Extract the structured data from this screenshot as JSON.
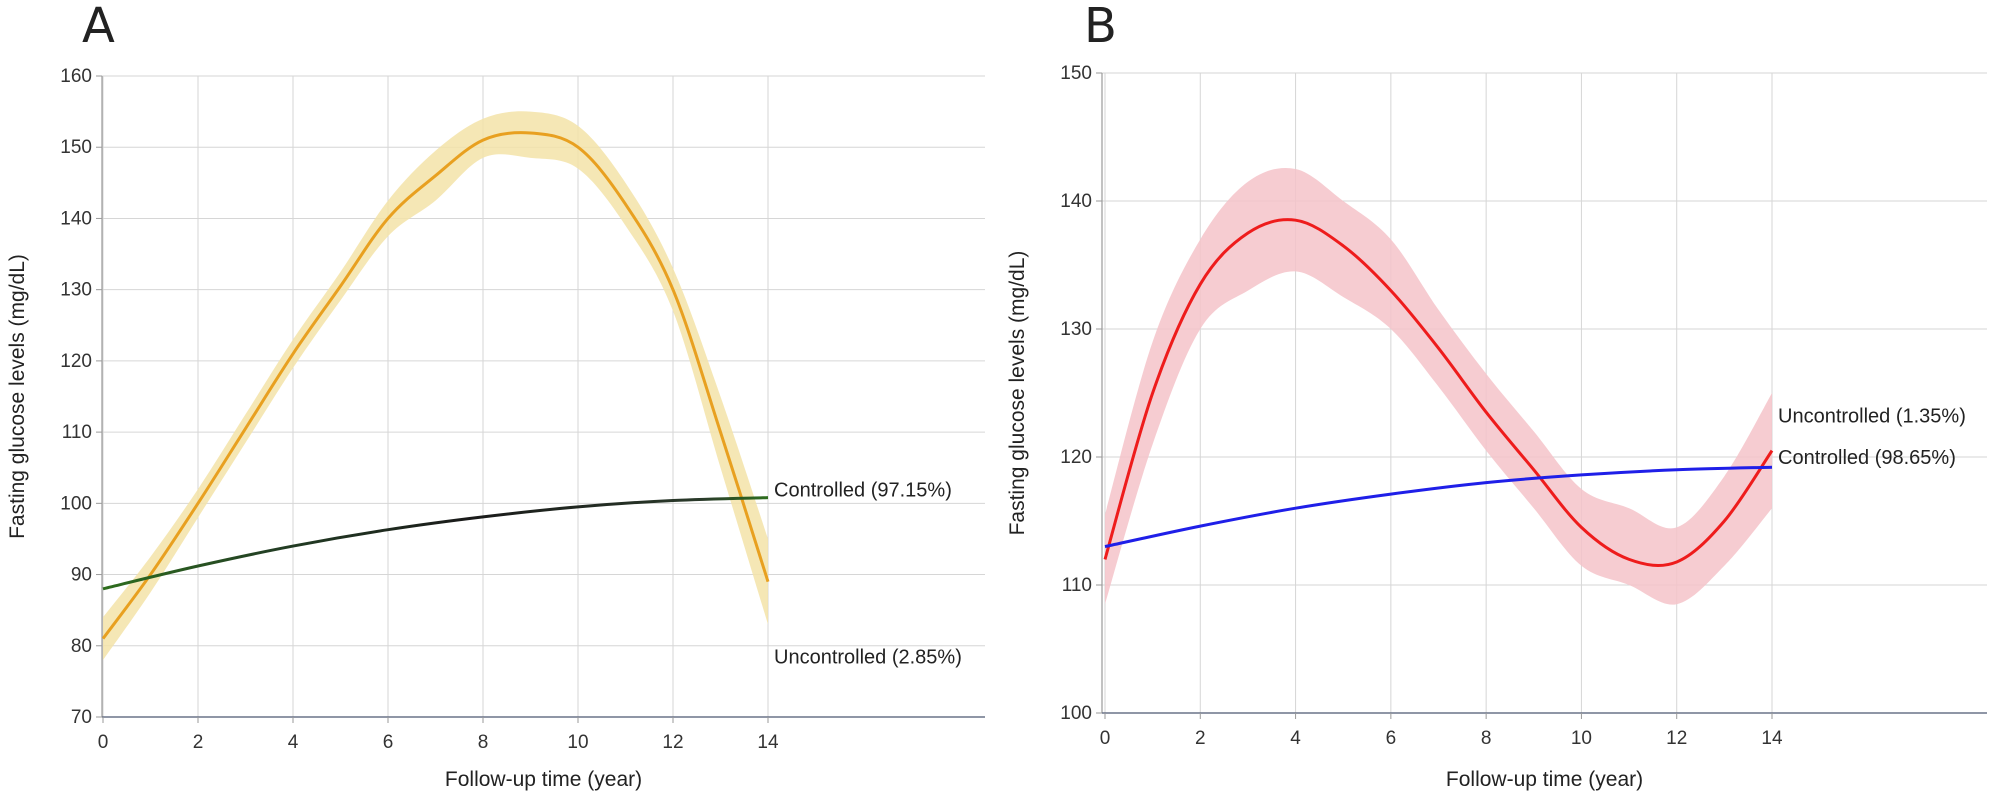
{
  "chart_data": [
    {
      "type": "line",
      "panel": "A",
      "title": "",
      "xlabel": "Follow-up time (year)",
      "ylabel": "Fasting glucose levels (mg/dL)",
      "xlim": [
        0,
        18.7
      ],
      "ylim": [
        70,
        160
      ],
      "xticks": [
        0,
        2,
        4,
        6,
        8,
        10,
        12,
        14
      ],
      "yticks": [
        70,
        80,
        90,
        100,
        110,
        120,
        130,
        140,
        150,
        160
      ],
      "grid": true,
      "series": [
        {
          "name": "Uncontrolled (2.85%)",
          "color": "#e8a020",
          "band_color": "#f3e3a8",
          "x": [
            0,
            1,
            2,
            3,
            4,
            5,
            6,
            7,
            8,
            9,
            10,
            11,
            12,
            13,
            14
          ],
          "values": [
            81,
            90,
            100,
            110.5,
            121,
            130.5,
            140,
            146,
            151,
            152,
            150,
            142,
            130,
            110,
            89
          ],
          "ci_lower": [
            78,
            87.5,
            98,
            108.5,
            119,
            128.5,
            137.5,
            142.5,
            148.5,
            148.5,
            147,
            139,
            127,
            105,
            83
          ],
          "ci_upper": [
            84,
            92.5,
            102,
            112.5,
            123,
            132.5,
            142.5,
            149.5,
            154,
            155,
            153,
            145,
            133,
            115,
            95
          ]
        },
        {
          "name": "Controlled (97.15%)",
          "color": "#1a1a1a",
          "color_start": "#2e6e1e",
          "x": [
            0,
            2,
            4,
            6,
            8,
            10,
            12,
            14
          ],
          "values": [
            88,
            91.2,
            94,
            96.3,
            98.1,
            99.5,
            100.4,
            100.8
          ]
        }
      ]
    },
    {
      "type": "line",
      "panel": "B",
      "title": "",
      "xlabel": "Follow-up time (year)",
      "ylabel": "Fasting glucose levels (mg/dL)",
      "xlim": [
        0,
        18.7
      ],
      "ylim": [
        100,
        150
      ],
      "xticks": [
        0,
        2,
        4,
        6,
        8,
        10,
        12,
        14
      ],
      "yticks": [
        100,
        110,
        120,
        130,
        140,
        150
      ],
      "grid": true,
      "series": [
        {
          "name": "Uncontrolled (1.35%)",
          "color": "#ee1c1c",
          "band_color": "#f4c3c9",
          "x": [
            0,
            1,
            2,
            3,
            4,
            5,
            6,
            7,
            8,
            9,
            10,
            11,
            12,
            13,
            14
          ],
          "values": [
            112,
            125,
            133.5,
            137.5,
            138.5,
            136.5,
            133,
            128.5,
            123.5,
            119,
            114.5,
            112,
            111.8,
            115,
            120.5
          ],
          "ci_lower": [
            108.5,
            121,
            130,
            133,
            134.5,
            132.5,
            130,
            125.5,
            120.5,
            116,
            111.5,
            110,
            108.5,
            111.5,
            116
          ],
          "ci_upper": [
            115.5,
            129,
            137,
            141.5,
            142.5,
            140,
            137,
            131.5,
            126.5,
            122,
            117.5,
            116,
            114.5,
            118.5,
            125
          ]
        },
        {
          "name": "Controlled (98.65%)",
          "color": "#1f1fe8",
          "x": [
            0,
            2,
            4,
            6,
            8,
            10,
            12,
            14
          ],
          "values": [
            113,
            114.6,
            116,
            117.1,
            118,
            118.6,
            119,
            119.2
          ]
        }
      ]
    }
  ]
}
